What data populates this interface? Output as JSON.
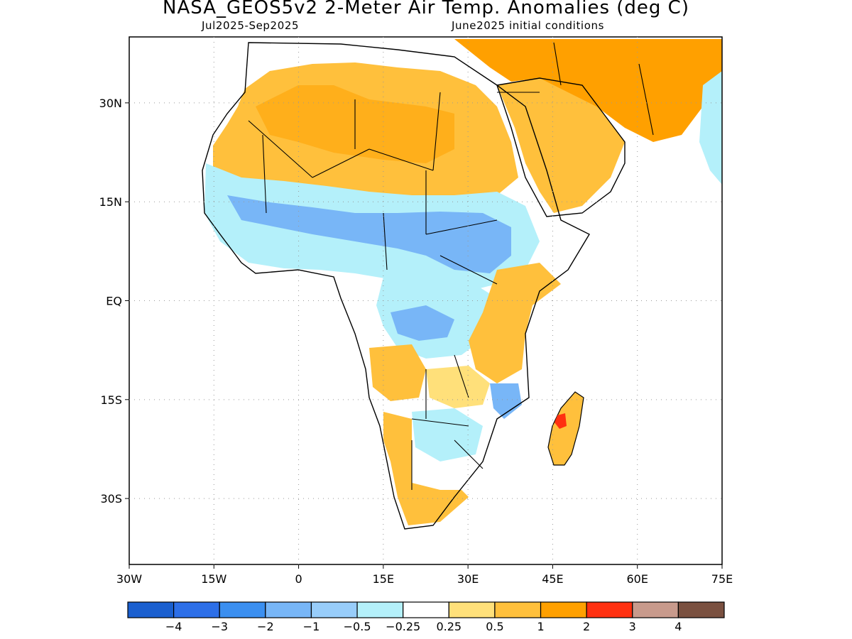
{
  "title": "NASA_GEOS5v2 2-Meter Air Temp. Anomalies (deg C)",
  "subtitle_left": "Jul2025-Sep2025",
  "subtitle_right": "June2025 initial conditions",
  "axes": {
    "lon_ticks": [
      "30W",
      "15W",
      "0",
      "15E",
      "30E",
      "45E",
      "60E",
      "75E"
    ],
    "lat_ticks": [
      "30N",
      "15N",
      "EQ",
      "15S",
      "30S"
    ],
    "lon_range": [
      -30,
      75
    ],
    "lat_range": [
      -40,
      40
    ],
    "grid": "dotted"
  },
  "colorbar": {
    "colors": [
      "#1a5fcf",
      "#2d6fe8",
      "#3b8ff0",
      "#78b6f7",
      "#98cdfa",
      "#b4f0fa",
      "#ffffff",
      "#ffe07a",
      "#ffc03c",
      "#ffa000",
      "#ff3010",
      "#c89a8c",
      "#7a5040"
    ],
    "labels": [
      "-4",
      "-3",
      "-2",
      "-1",
      "-0.5",
      "-0.25",
      "0.25",
      "0.5",
      "1",
      "2",
      "3",
      "4"
    ]
  },
  "legend_colors": {
    "cold": "#78b6f7",
    "cool": "#b4f0fa",
    "warm_light": "#ffe07a",
    "warm": "#ffc03c",
    "hot": "#ffa000",
    "very_hot": "#ff3010"
  }
}
